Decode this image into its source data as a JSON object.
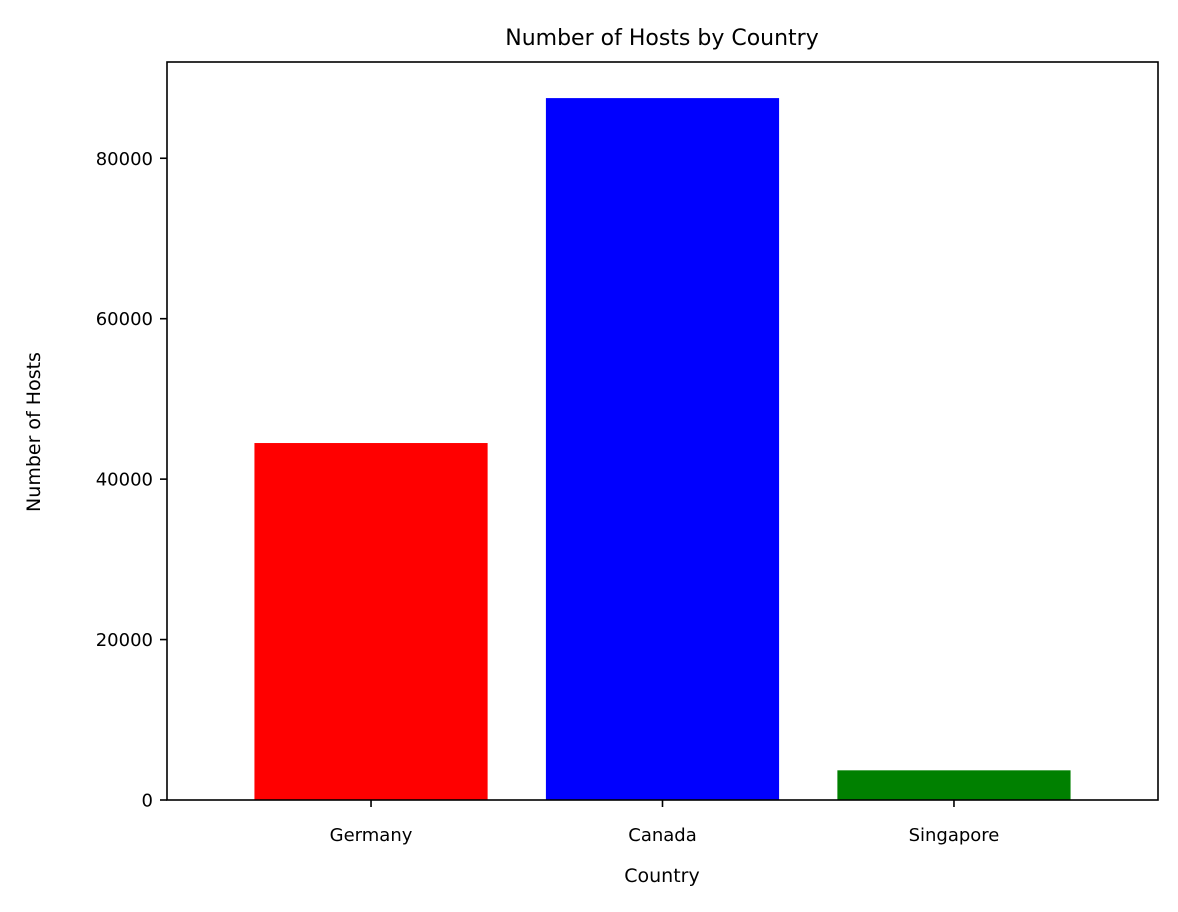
{
  "chart_data": {
    "type": "bar",
    "title": "Number of Hosts by Country",
    "xlabel": "Country",
    "ylabel": "Number of Hosts",
    "categories": [
      "Germany",
      "Canada",
      "Singapore"
    ],
    "values": [
      44500,
      87500,
      3700
    ],
    "colors": [
      "#ff0000",
      "#0000ff",
      "#008000"
    ],
    "ylim": [
      0,
      92000
    ],
    "yticks": [
      0,
      20000,
      40000,
      60000,
      80000
    ],
    "ytick_labels": [
      "0",
      "20000",
      "40000",
      "60000",
      "80000"
    ],
    "grid": false,
    "legend": "none"
  }
}
